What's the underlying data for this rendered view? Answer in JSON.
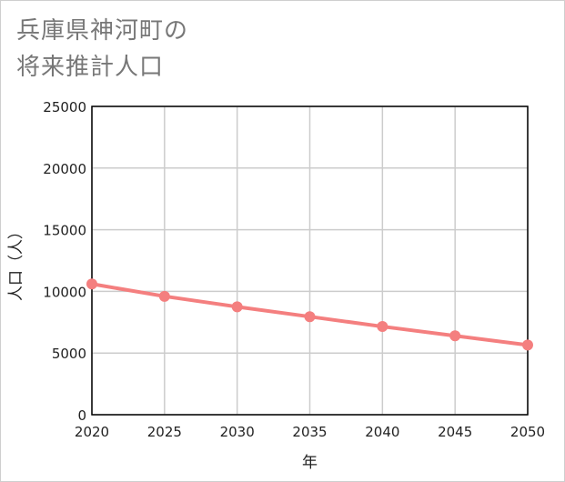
{
  "chart_data": {
    "type": "line",
    "title_lines": [
      "兵庫県神河町の",
      "将来推計人口"
    ],
    "xlabel": "年",
    "ylabel": "人口（人）",
    "x": [
      2020,
      2025,
      2030,
      2035,
      2040,
      2045,
      2050
    ],
    "x_ticks": [
      "2020",
      "2025",
      "2030",
      "2035",
      "2040",
      "2045",
      "2050"
    ],
    "y_ticks": [
      "0",
      "5000",
      "10000",
      "15000",
      "20000",
      "25000"
    ],
    "ylim": [
      0,
      25000
    ],
    "xlim": [
      2020,
      2050
    ],
    "grid": true,
    "series": [
      {
        "name": "人口",
        "color": "#f47f7f",
        "values": [
          10600,
          9600,
          8750,
          7950,
          7150,
          6400,
          5650
        ]
      }
    ]
  }
}
